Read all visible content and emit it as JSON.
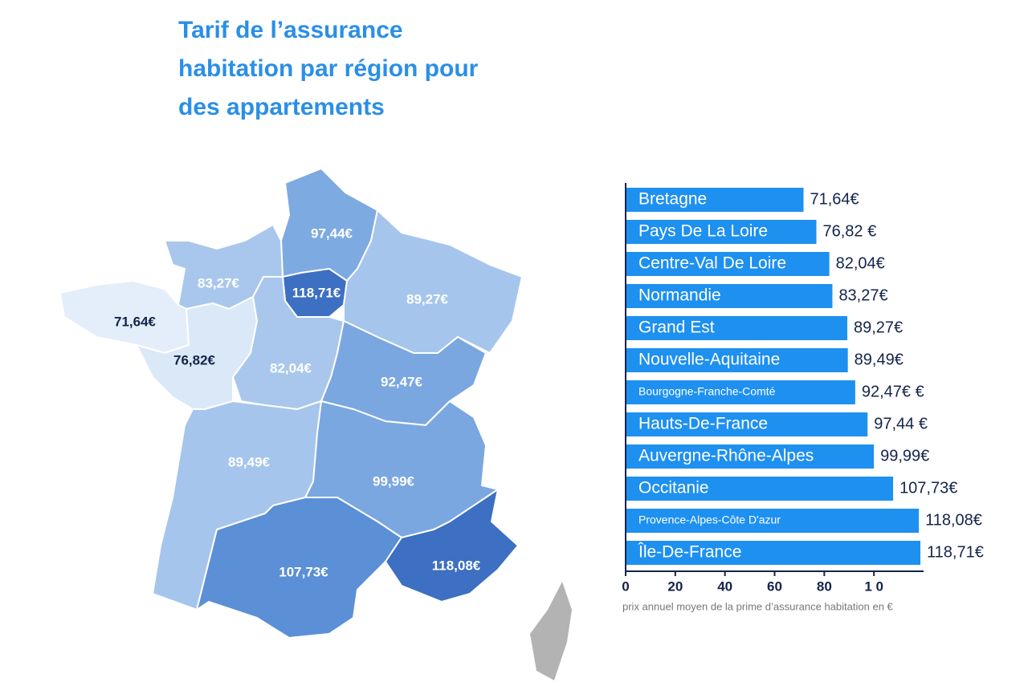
{
  "chart_data": [
    {
      "type": "map",
      "title": "Tarif de l’assurance habitation par région pour des appartements",
      "values": [
        97.44,
        83.27,
        118.71,
        89.27,
        71.64,
        76.82,
        82.04,
        92.47,
        89.49,
        99.99,
        107.73,
        118.08
      ],
      "value_labels": [
        "97,44€",
        "83,27€",
        "118,71€",
        "89,27€",
        "71,64€",
        "76,82€",
        "82,04€",
        "92,47€",
        "89,49€",
        "99,99€",
        "107,73€",
        "118,08€"
      ],
      "colors": [
        "#7eaae2",
        "#a9c7ec",
        "#3d6fc2",
        "#a6c5ec",
        "#e4eefa",
        "#dbe8f7",
        "#a9c7ec",
        "#7aa7e0",
        "#a6c5ec",
        "#7aa7e0",
        "#5b8fd6",
        "#3d6fc2"
      ]
    },
    {
      "type": "bar",
      "orientation": "horizontal",
      "categories": [
        "Bretagne",
        "Pays De La Loire",
        "Centre-Val De Loire",
        "Normandie",
        "Grand Est",
        "Nouvelle-Aquitaine",
        "Bourgogne-Franche-Comté",
        "Hauts-De-France",
        "Auvergne-Rhône-Alpes",
        "Occitanie",
        "Provence-Alpes-Côte D'azur",
        "Île-De-France"
      ],
      "values": [
        71.64,
        76.82,
        82.04,
        83.27,
        89.27,
        89.49,
        92.47,
        97.44,
        99.99,
        107.73,
        118.08,
        118.71
      ],
      "value_labels": [
        "71,64€",
        "76,82 €",
        "82,04€",
        "83,27€",
        "89,27€",
        "89,49€",
        "92,47€ €",
        "97,44 €",
        "99,99€",
        "107,73€",
        "118,08€",
        "118,71€"
      ],
      "color": "#1e90f0",
      "xlim": [
        0,
        120
      ],
      "xticks": [
        0,
        20,
        40,
        60,
        80,
        {
          "value": 100,
          "label": "1 0"
        }
      ],
      "xlabel": "prix annuel moyen de la prime d’assurance habitation en €"
    }
  ]
}
